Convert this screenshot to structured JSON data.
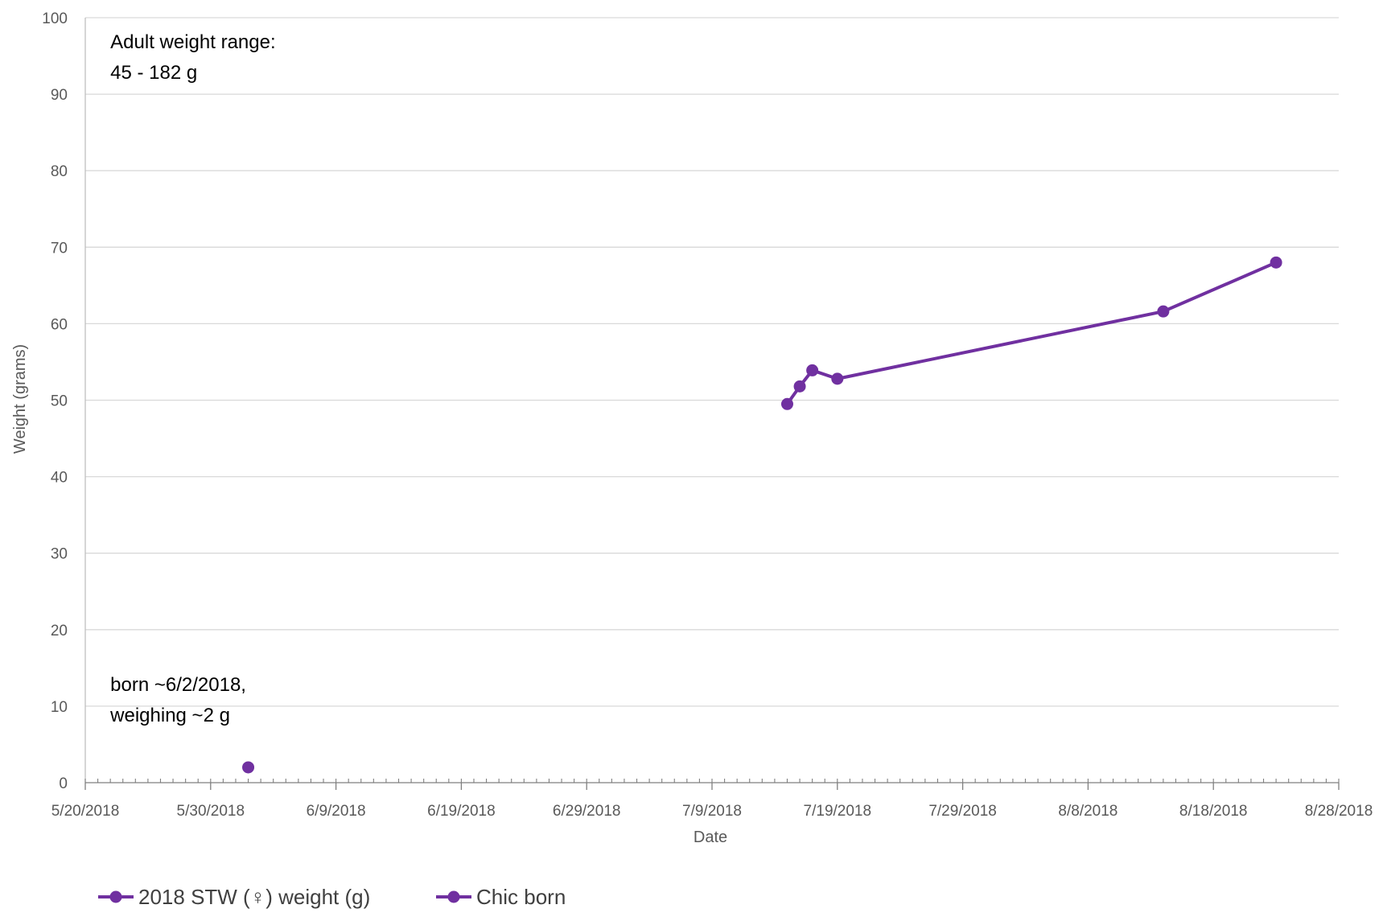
{
  "chart_data": {
    "type": "scatter",
    "xlabel": "Date",
    "ylabel": "Weight (grams)",
    "ylim": [
      0,
      100
    ],
    "yticks": [
      0,
      10,
      20,
      30,
      40,
      50,
      60,
      70,
      80,
      90,
      100
    ],
    "xlim": [
      "2018-05-20",
      "2018-08-28"
    ],
    "xtick_labels": [
      "5/20/2018",
      "5/30/2018",
      "6/9/2018",
      "6/19/2018",
      "6/29/2018",
      "7/9/2018",
      "7/19/2018",
      "7/29/2018",
      "8/8/2018",
      "8/18/2018",
      "8/28/2018"
    ],
    "xtick_dates": [
      "2018-05-20",
      "2018-05-30",
      "2018-06-09",
      "2018-06-19",
      "2018-06-29",
      "2018-07-09",
      "2018-07-19",
      "2018-07-29",
      "2018-08-08",
      "2018-08-18",
      "2018-08-28"
    ],
    "grid": "horizontal",
    "legend_position": "bottom-left",
    "series": [
      {
        "name": "2018 STW (♀) weight (g)",
        "color": "#7030A0",
        "mode": "lines+markers",
        "points": [
          {
            "x": "2018-07-15",
            "y": 49.5
          },
          {
            "x": "2018-07-16",
            "y": 51.8
          },
          {
            "x": "2018-07-17",
            "y": 53.9
          },
          {
            "x": "2018-07-19",
            "y": 52.8
          },
          {
            "x": "2018-08-14",
            "y": 61.6
          },
          {
            "x": "2018-08-23",
            "y": 68.0
          }
        ]
      },
      {
        "name": "Chic born",
        "color": "#7030A0",
        "mode": "markers",
        "points": [
          {
            "x": "2018-06-02",
            "y": 2
          }
        ]
      }
    ],
    "annotations": [
      {
        "lines": [
          "Adult weight range:",
          "45 - 182 g"
        ],
        "anchor_x": "2018-05-22",
        "anchor_y": 96
      },
      {
        "lines": [
          "born ~6/2/2018,",
          "weighing ~2 g"
        ],
        "anchor_x": "2018-05-22",
        "anchor_y": 12
      }
    ]
  }
}
